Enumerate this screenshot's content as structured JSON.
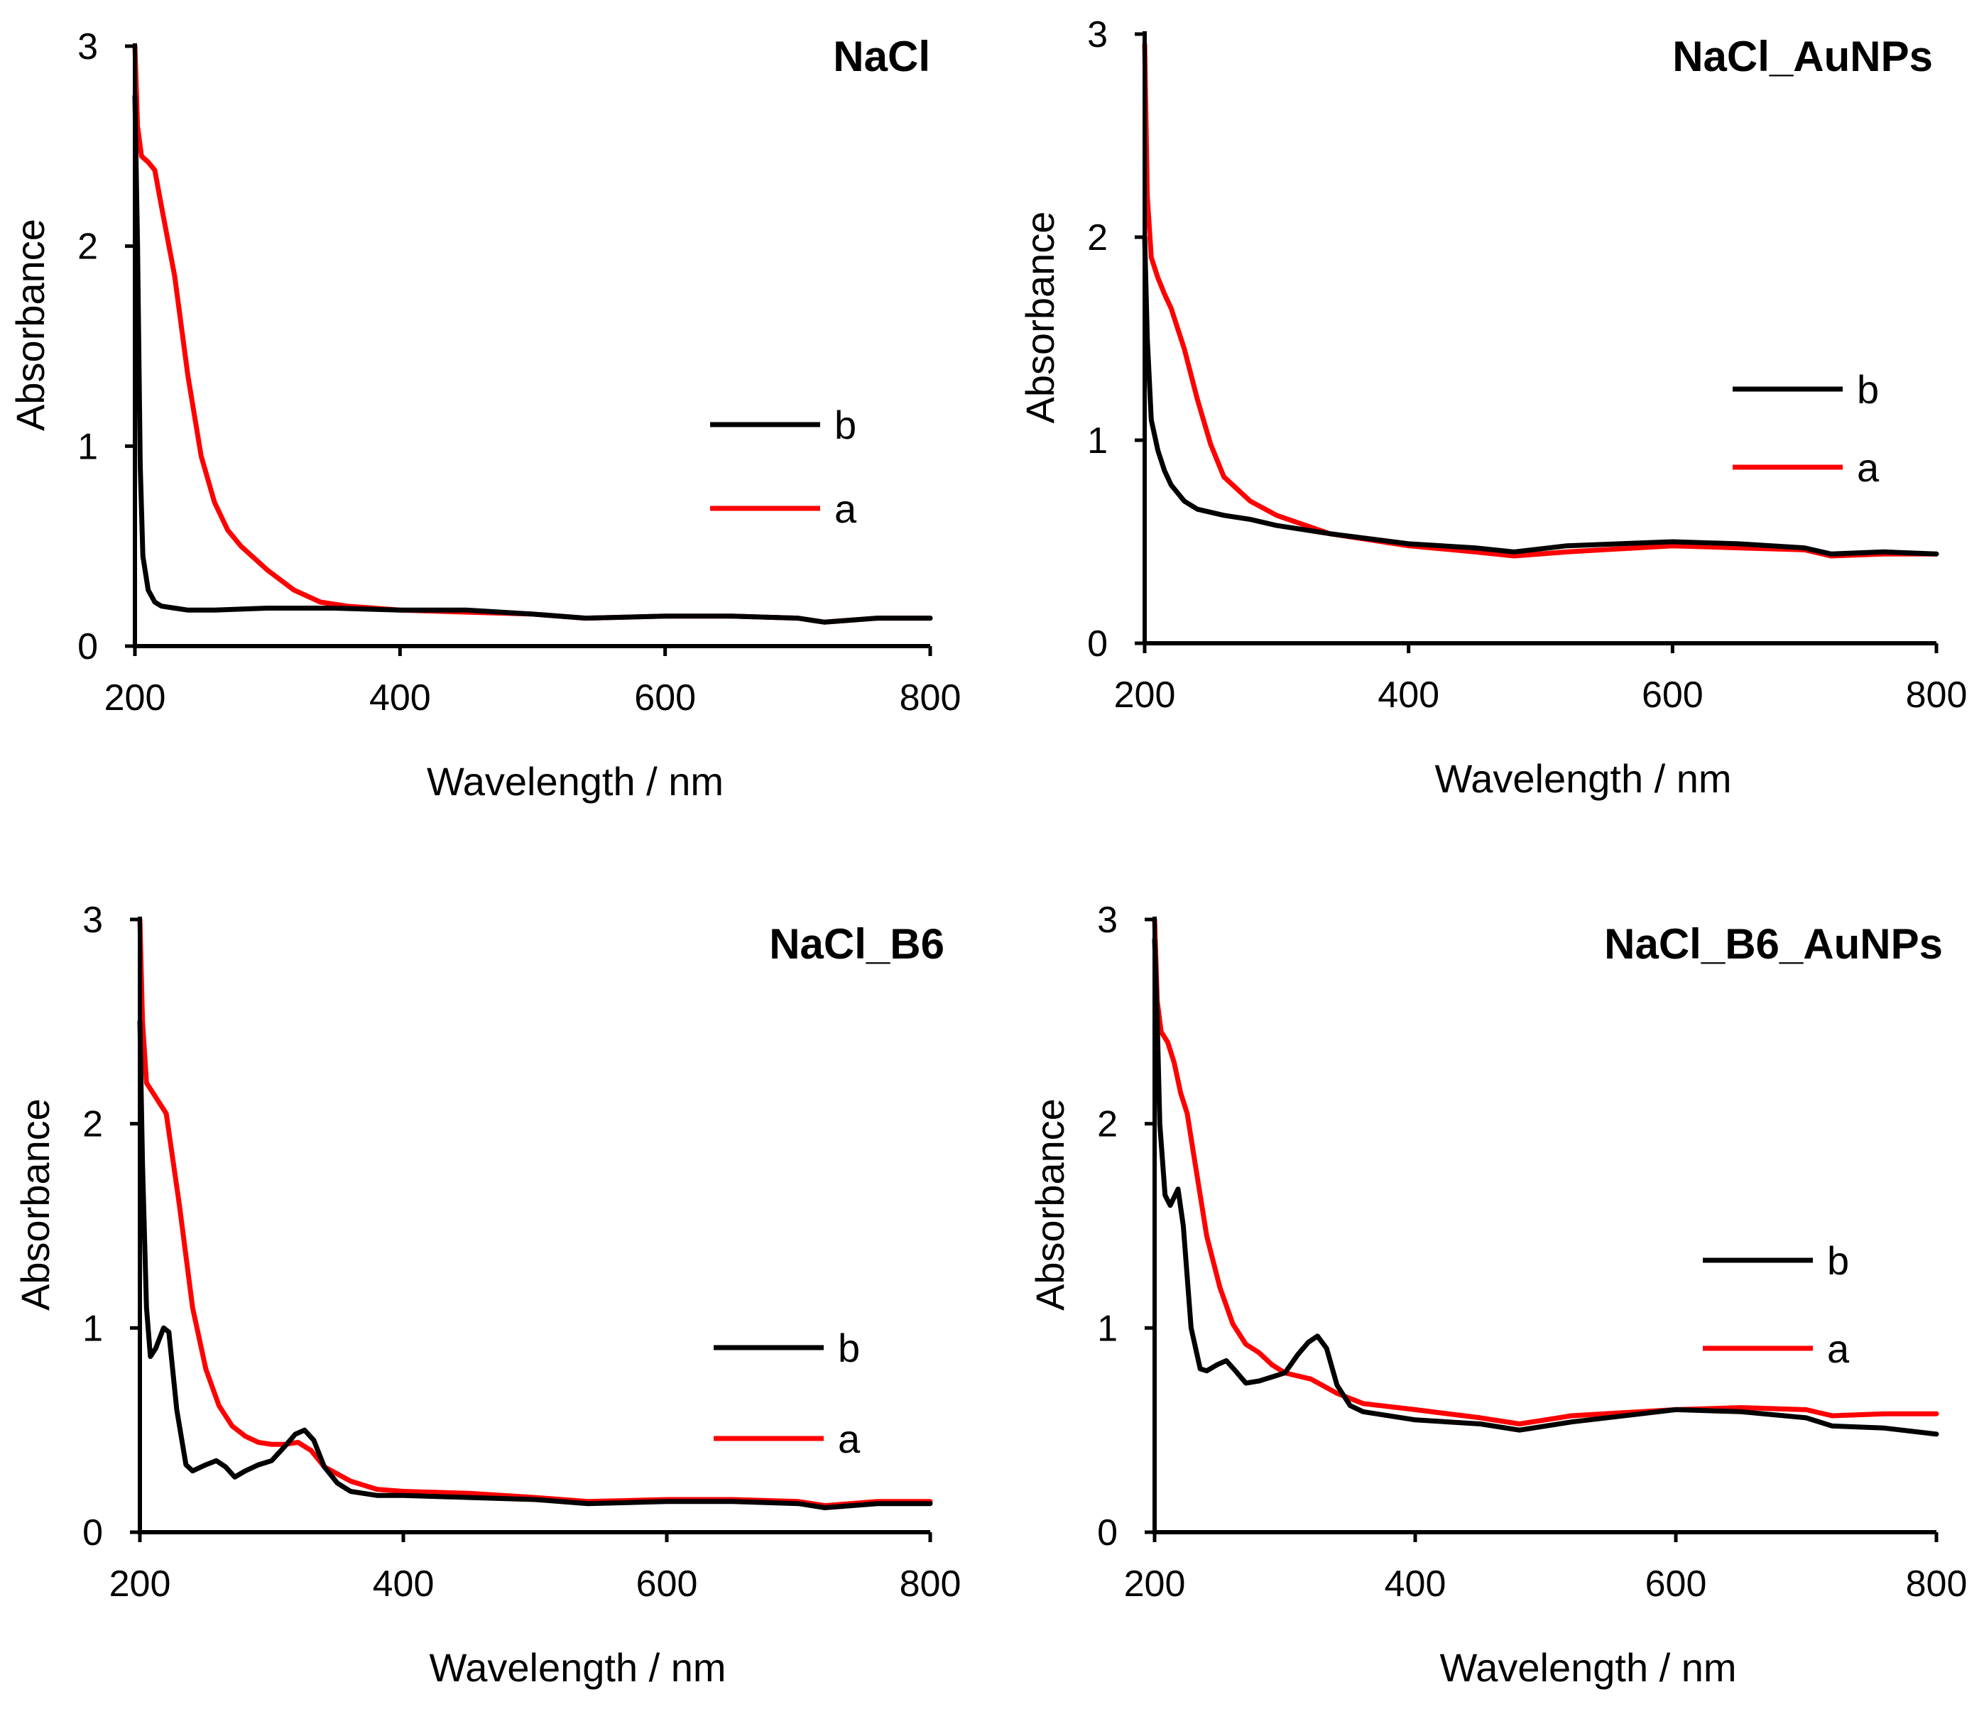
{
  "chart_data": [
    {
      "type": "line",
      "title": "NaCl",
      "xlabel": "Wavelength / nm",
      "ylabel": "Absorbance",
      "xlim": [
        200,
        800
      ],
      "ylim": [
        0,
        3
      ],
      "xticks": [
        "200",
        "400",
        "600",
        "800"
      ],
      "yticks": [
        "0",
        "1",
        "2",
        "3"
      ],
      "legend_position": "right",
      "series": [
        {
          "name": "b",
          "color": "#000000",
          "x": [
            200,
            202,
            204,
            206,
            210,
            215,
            220,
            230,
            240,
            260,
            300,
            350,
            400,
            450,
            500,
            540,
            600,
            650,
            700,
            720,
            760,
            800
          ],
          "y": [
            2.75,
            2.0,
            0.9,
            0.45,
            0.28,
            0.22,
            0.2,
            0.19,
            0.18,
            0.18,
            0.19,
            0.19,
            0.18,
            0.18,
            0.16,
            0.14,
            0.15,
            0.15,
            0.14,
            0.12,
            0.14,
            0.14
          ]
        },
        {
          "name": "a",
          "color": "#ff0000",
          "x": [
            200,
            202,
            205,
            210,
            215,
            220,
            230,
            240,
            250,
            260,
            270,
            280,
            300,
            320,
            340,
            360,
            380,
            400,
            450,
            500,
            540,
            600,
            650,
            700,
            720,
            760,
            800
          ],
          "y": [
            3.0,
            2.6,
            2.45,
            2.42,
            2.38,
            2.2,
            1.85,
            1.35,
            0.95,
            0.72,
            0.58,
            0.5,
            0.38,
            0.28,
            0.22,
            0.2,
            0.19,
            0.18,
            0.17,
            0.16,
            0.14,
            0.15,
            0.15,
            0.14,
            0.12,
            0.14,
            0.14
          ]
        }
      ]
    },
    {
      "type": "line",
      "title": "NaCl_AuNPs",
      "xlabel": "Wavelength / nm",
      "ylabel": "Absorbance",
      "xlim": [
        200,
        800
      ],
      "ylim": [
        0,
        3
      ],
      "xticks": [
        "200",
        "400",
        "600",
        "800"
      ],
      "yticks": [
        "0",
        "1",
        "2",
        "3"
      ],
      "legend_position": "right",
      "series": [
        {
          "name": "b",
          "color": "#000000",
          "x": [
            200,
            202,
            205,
            210,
            215,
            220,
            230,
            240,
            260,
            280,
            300,
            340,
            400,
            450,
            480,
            520,
            600,
            650,
            700,
            720,
            760,
            800
          ],
          "y": [
            2.0,
            1.5,
            1.1,
            0.95,
            0.85,
            0.78,
            0.7,
            0.66,
            0.63,
            0.61,
            0.58,
            0.54,
            0.49,
            0.47,
            0.45,
            0.48,
            0.5,
            0.49,
            0.47,
            0.44,
            0.45,
            0.44
          ]
        },
        {
          "name": "a",
          "color": "#ff0000",
          "x": [
            200,
            202,
            205,
            210,
            215,
            220,
            230,
            240,
            250,
            260,
            280,
            300,
            340,
            400,
            450,
            480,
            520,
            600,
            650,
            700,
            720,
            760,
            800
          ],
          "y": [
            2.95,
            2.2,
            1.9,
            1.8,
            1.72,
            1.65,
            1.45,
            1.2,
            0.98,
            0.82,
            0.7,
            0.63,
            0.54,
            0.48,
            0.45,
            0.43,
            0.45,
            0.48,
            0.47,
            0.46,
            0.43,
            0.44,
            0.44
          ]
        }
      ]
    },
    {
      "type": "line",
      "title": "NaCl_B6",
      "xlabel": "Wavelength / nm",
      "ylabel": "Absorbance",
      "xlim": [
        200,
        800
      ],
      "ylim": [
        0,
        3
      ],
      "xticks": [
        "200",
        "400",
        "600",
        "800"
      ],
      "yticks": [
        "0",
        "1",
        "2",
        "3"
      ],
      "legend_position": "right",
      "series": [
        {
          "name": "b",
          "color": "#000000",
          "x": [
            200,
            202,
            205,
            208,
            212,
            218,
            222,
            228,
            235,
            240,
            250,
            258,
            265,
            272,
            280,
            290,
            300,
            310,
            318,
            325,
            332,
            340,
            350,
            360,
            380,
            400,
            450,
            500,
            540,
            600,
            650,
            700,
            720,
            760,
            800
          ],
          "y": [
            2.5,
            1.8,
            1.1,
            0.86,
            0.9,
            1.0,
            0.98,
            0.6,
            0.33,
            0.3,
            0.33,
            0.35,
            0.32,
            0.27,
            0.3,
            0.33,
            0.35,
            0.42,
            0.48,
            0.5,
            0.45,
            0.32,
            0.24,
            0.2,
            0.18,
            0.18,
            0.17,
            0.16,
            0.14,
            0.15,
            0.15,
            0.14,
            0.12,
            0.14,
            0.14
          ]
        },
        {
          "name": "a",
          "color": "#ff0000",
          "x": [
            200,
            202,
            205,
            210,
            215,
            220,
            230,
            240,
            250,
            260,
            270,
            280,
            290,
            300,
            310,
            320,
            330,
            340,
            360,
            380,
            400,
            450,
            500,
            540,
            600,
            650,
            700,
            720,
            760,
            800
          ],
          "y": [
            3.0,
            2.5,
            2.2,
            2.15,
            2.1,
            2.05,
            1.6,
            1.1,
            0.8,
            0.62,
            0.52,
            0.47,
            0.44,
            0.43,
            0.43,
            0.44,
            0.4,
            0.32,
            0.25,
            0.21,
            0.2,
            0.19,
            0.17,
            0.15,
            0.16,
            0.16,
            0.15,
            0.13,
            0.15,
            0.15
          ]
        }
      ]
    },
    {
      "type": "line",
      "title": "NaCl_B6_AuNPs",
      "xlabel": "Wavelength / nm",
      "ylabel": "Absorbance",
      "xlim": [
        200,
        800
      ],
      "ylim": [
        0,
        3
      ],
      "xticks": [
        "200",
        "400",
        "600",
        "800"
      ],
      "yticks": [
        "0",
        "1",
        "2",
        "3"
      ],
      "legend_position": "right",
      "series": [
        {
          "name": "b",
          "color": "#000000",
          "x": [
            200,
            202,
            204,
            208,
            212,
            218,
            222,
            228,
            235,
            240,
            248,
            255,
            262,
            270,
            280,
            290,
            300,
            310,
            318,
            325,
            332,
            340,
            350,
            360,
            400,
            450,
            480,
            520,
            600,
            650,
            700,
            720,
            760,
            800
          ],
          "y": [
            2.9,
            2.5,
            2.0,
            1.65,
            1.6,
            1.68,
            1.5,
            1.0,
            0.8,
            0.79,
            0.82,
            0.84,
            0.79,
            0.73,
            0.74,
            0.76,
            0.78,
            0.87,
            0.93,
            0.96,
            0.9,
            0.72,
            0.62,
            0.59,
            0.55,
            0.53,
            0.5,
            0.54,
            0.6,
            0.59,
            0.56,
            0.52,
            0.51,
            0.48
          ]
        },
        {
          "name": "a",
          "color": "#ff0000",
          "x": [
            200,
            202,
            205,
            210,
            215,
            220,
            225,
            230,
            240,
            250,
            260,
            270,
            280,
            290,
            300,
            320,
            340,
            360,
            400,
            450,
            480,
            520,
            600,
            650,
            700,
            720,
            760,
            800
          ],
          "y": [
            3.0,
            2.6,
            2.45,
            2.4,
            2.3,
            2.15,
            2.05,
            1.85,
            1.45,
            1.2,
            1.02,
            0.92,
            0.88,
            0.82,
            0.78,
            0.75,
            0.68,
            0.63,
            0.6,
            0.56,
            0.53,
            0.57,
            0.6,
            0.61,
            0.6,
            0.57,
            0.58,
            0.58
          ]
        }
      ]
    }
  ]
}
